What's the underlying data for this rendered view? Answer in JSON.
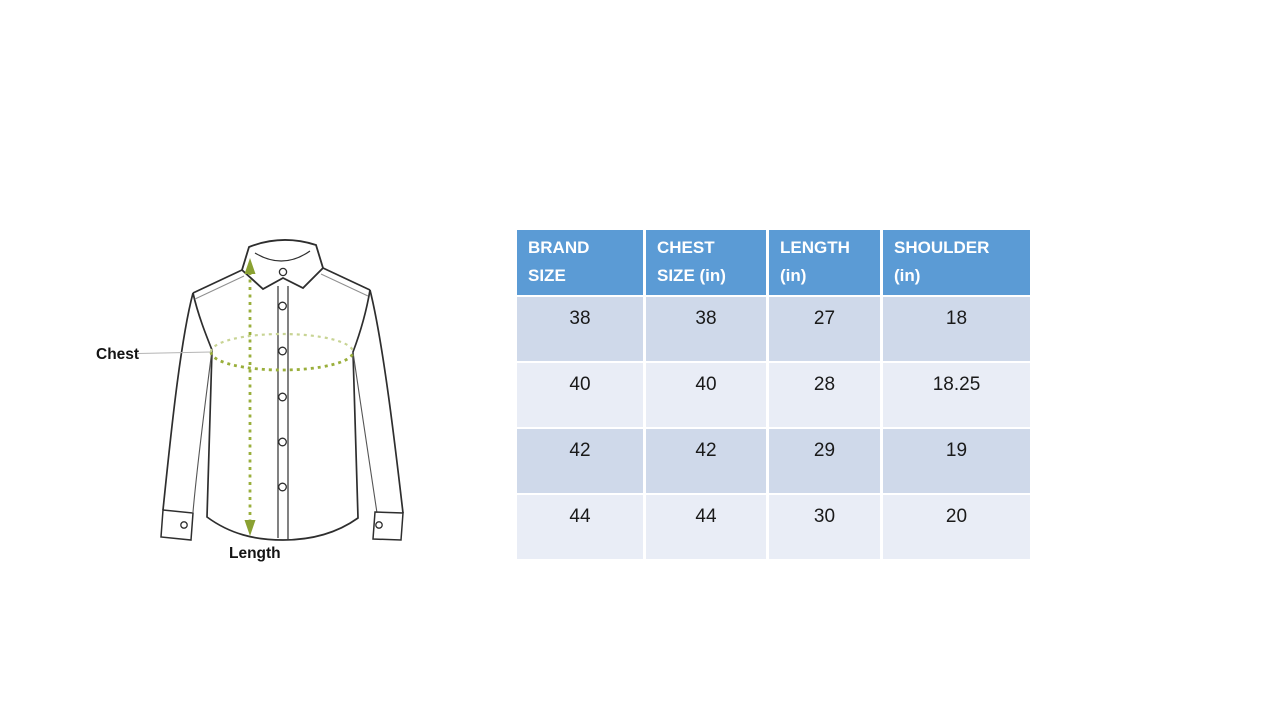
{
  "diagram": {
    "chest_label": "Chest",
    "length_label": "Length",
    "colors": {
      "outline": "#2e2e2e",
      "seam": "#8f8f8f",
      "measure_green": "#9aaf3c",
      "measure_green_light": "#c8d494",
      "pointer_line": "#b5b5b5"
    }
  },
  "size_table": {
    "columns": [
      "BRAND\nSIZE",
      "CHEST\nSIZE (in)",
      "LENGTH\n(in)",
      "SHOULDER\n(in)"
    ],
    "rows": [
      [
        "38",
        "38",
        "27",
        "18"
      ],
      [
        "40",
        "40",
        "28",
        "18.25"
      ],
      [
        "42",
        "42",
        "29",
        "19"
      ],
      [
        "44",
        "44",
        "30",
        "20"
      ]
    ],
    "colors": {
      "header_bg": "#5B9BD5",
      "header_text": "#ffffff",
      "row_odd_bg": "#CFD9EA",
      "row_even_bg": "#E9EDF6",
      "cell_text": "#1a1a1a"
    }
  }
}
